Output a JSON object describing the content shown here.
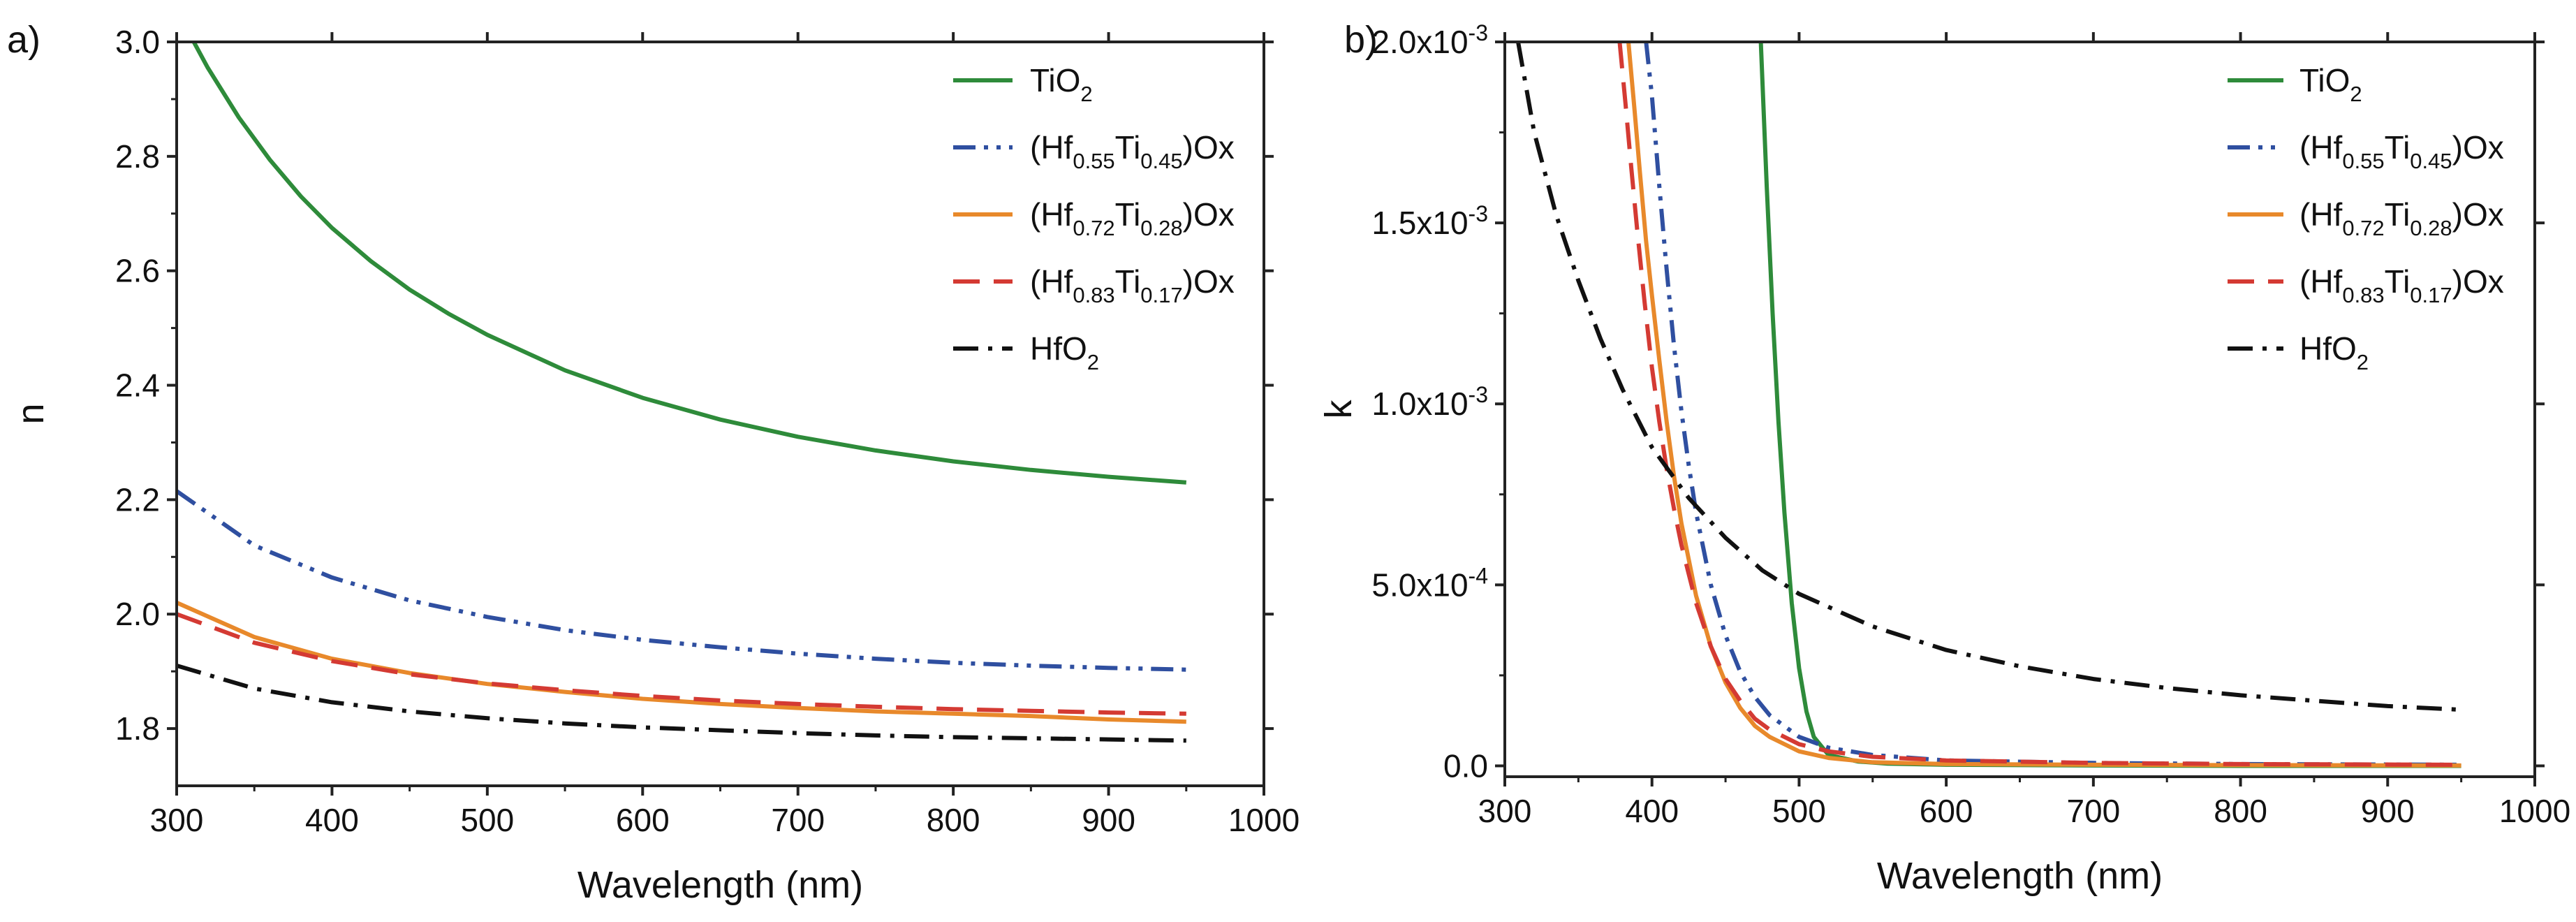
{
  "figure": {
    "panel_a_label": "a)",
    "panel_b_label": "b)"
  },
  "chart_data": [
    {
      "type": "line",
      "panel": "a)",
      "title": "",
      "xlabel": "Wavelength (nm)",
      "ylabel": "n",
      "xlim": [
        300,
        1000
      ],
      "ylim": [
        1.7,
        3.0
      ],
      "xticks": [
        300,
        400,
        500,
        600,
        700,
        800,
        900,
        1000
      ],
      "xtick_labels": [
        "300",
        "400",
        "500",
        "600",
        "700",
        "800",
        "900",
        "1000"
      ],
      "yticks": [
        1.8,
        2.0,
        2.2,
        2.4,
        2.6,
        2.8,
        3.0
      ],
      "ytick_labels": [
        "1.8",
        "2.0",
        "2.2",
        "2.4",
        "2.6",
        "2.8",
        "3.0"
      ],
      "grid": false,
      "legend_position": "top-right",
      "series": [
        {
          "name": "TiO2",
          "label_main": "TiO",
          "label_sub": "2",
          "label_tail": "",
          "color": "#2e8b3a",
          "style": "solid",
          "x": [
            311,
            320,
            340,
            360,
            380,
            400,
            425,
            450,
            475,
            500,
            550,
            600,
            650,
            700,
            750,
            800,
            850,
            900,
            950
          ],
          "y": [
            3.0,
            2.955,
            2.868,
            2.794,
            2.73,
            2.675,
            2.617,
            2.567,
            2.525,
            2.488,
            2.426,
            2.378,
            2.34,
            2.31,
            2.286,
            2.267,
            2.252,
            2.24,
            2.23
          ]
        },
        {
          "name": "(Hf0.55Ti0.45)Ox",
          "label_main": "(Hf",
          "label_sub": "0.55",
          "label_main2": "Ti",
          "label_sub2": "0.45",
          "label_tail": ")Ox",
          "color": "#2f4fa0",
          "style": "dashdotdot",
          "x": [
            300,
            350,
            400,
            450,
            500,
            550,
            600,
            650,
            700,
            750,
            800,
            850,
            900,
            950
          ],
          "y": [
            2.215,
            2.12,
            2.064,
            2.024,
            1.995,
            1.972,
            1.955,
            1.942,
            1.931,
            1.922,
            1.915,
            1.91,
            1.906,
            1.903
          ]
        },
        {
          "name": "(Hf0.72Ti0.28)Ox",
          "label_main": "(Hf",
          "label_sub": "0.72",
          "label_main2": "Ti",
          "label_sub2": "0.28",
          "label_tail": ")Ox",
          "color": "#e8892b",
          "style": "solid",
          "x": [
            300,
            350,
            400,
            450,
            500,
            550,
            600,
            650,
            700,
            750,
            800,
            850,
            900,
            950
          ],
          "y": [
            2.02,
            1.96,
            1.922,
            1.897,
            1.878,
            1.864,
            1.852,
            1.843,
            1.836,
            1.83,
            1.826,
            1.822,
            1.816,
            1.812
          ]
        },
        {
          "name": "(Hf0.83Ti0.17)Ox",
          "label_main": "(Hf",
          "label_sub": "0.83",
          "label_main2": "Ti",
          "label_sub2": "0.17",
          "label_tail": ")Ox",
          "color": "#d43a33",
          "style": "dashed",
          "x": [
            300,
            350,
            400,
            450,
            500,
            550,
            600,
            650,
            700,
            750,
            800,
            850,
            900,
            950
          ],
          "y": [
            2.0,
            1.95,
            1.918,
            1.895,
            1.879,
            1.867,
            1.857,
            1.849,
            1.843,
            1.838,
            1.834,
            1.831,
            1.828,
            1.826
          ]
        },
        {
          "name": "HfO2",
          "label_main": "HfO",
          "label_sub": "2",
          "label_tail": "",
          "color": "#111111",
          "style": "dashdot",
          "x": [
            300,
            350,
            400,
            450,
            500,
            550,
            600,
            650,
            700,
            750,
            800,
            850,
            900,
            950
          ],
          "y": [
            1.91,
            1.87,
            1.846,
            1.83,
            1.818,
            1.809,
            1.802,
            1.797,
            1.792,
            1.788,
            1.785,
            1.783,
            1.781,
            1.779
          ]
        }
      ]
    },
    {
      "type": "line",
      "panel": "b)",
      "title": "",
      "xlabel": "Wavelength (nm)",
      "ylabel": "k",
      "xlim": [
        300,
        1000
      ],
      "ylim": [
        -3e-05,
        0.002
      ],
      "xticks": [
        300,
        400,
        500,
        600,
        700,
        800,
        900,
        1000
      ],
      "xtick_labels": [
        "300",
        "400",
        "500",
        "600",
        "700",
        "800",
        "900",
        "1000"
      ],
      "yticks": [
        0.0,
        0.0005,
        0.001,
        0.0015,
        0.002
      ],
      "ytick_labels": [
        {
          "main": "0.0",
          "exp": ""
        },
        {
          "main": "5.0x10",
          "exp": "-4"
        },
        {
          "main": "1.0x10",
          "exp": "-3"
        },
        {
          "main": "1.5x10",
          "exp": "-3"
        },
        {
          "main": "2.0x10",
          "exp": "-3"
        }
      ],
      "grid": false,
      "legend_position": "top-right",
      "series": [
        {
          "name": "TiO2",
          "label_main": "TiO",
          "label_sub": "2",
          "label_tail": "",
          "color": "#2e8b3a",
          "style": "solid",
          "x": [
            474,
            478,
            482,
            486,
            490,
            495,
            500,
            505,
            510,
            520,
            540,
            560,
            600,
            700,
            800,
            950
          ],
          "y": [
            0.002,
            0.0016,
            0.00125,
            0.00095,
            0.0007,
            0.00045,
            0.00027,
            0.00015,
            8e-05,
            3e-05,
            1.2e-05,
            6e-06,
            3e-06,
            1e-06,
            0.0,
            0.0
          ]
        },
        {
          "name": "(Hf0.55Ti0.45)Ox",
          "label_main": "(Hf",
          "label_sub": "0.55",
          "label_main2": "Ti",
          "label_sub2": "0.45",
          "label_tail": ")Ox",
          "color": "#2f4fa0",
          "style": "dashdotdot",
          "x": [
            396,
            400,
            405,
            410,
            415,
            420,
            425,
            430,
            440,
            450,
            460,
            470,
            480,
            500,
            520,
            550,
            600,
            700,
            800,
            950
          ],
          "y": [
            0.002,
            0.00185,
            0.0016,
            0.00137,
            0.00116,
            0.00098,
            0.00083,
            0.0007,
            0.0005,
            0.00036,
            0.00026,
            0.00019,
            0.00014,
            8e-05,
            5e-05,
            3e-05,
            1.5e-05,
            8e-06,
            5e-06,
            3e-06
          ]
        },
        {
          "name": "(Hf0.72Ti0.28)Ox",
          "label_main": "(Hf",
          "label_sub": "0.72",
          "label_main2": "Ti",
          "label_sub2": "0.28",
          "label_tail": ")Ox",
          "color": "#e8892b",
          "style": "solid",
          "x": [
            384,
            388,
            392,
            396,
            400,
            405,
            410,
            415,
            420,
            430,
            440,
            450,
            460,
            470,
            480,
            500,
            520,
            550,
            600,
            700,
            800,
            950
          ],
          "y": [
            0.002,
            0.00182,
            0.00163,
            0.00145,
            0.0013,
            0.00112,
            0.00095,
            0.0008,
            0.00067,
            0.00047,
            0.00033,
            0.00023,
            0.00016,
            0.00011,
            8e-05,
            4e-05,
            2.2e-05,
            1e-05,
            5e-06,
            3e-06,
            2e-06,
            1e-06
          ]
        },
        {
          "name": "(Hf0.83Ti0.17)Ox",
          "label_main": "(Hf",
          "label_sub": "0.83",
          "label_main2": "Ti",
          "label_sub2": "0.17",
          "label_tail": ")Ox",
          "color": "#d43a33",
          "style": "dashed",
          "x": [
            378,
            382,
            386,
            390,
            395,
            400,
            405,
            410,
            415,
            420,
            430,
            440,
            450,
            460,
            470,
            480,
            500,
            520,
            550,
            600,
            700,
            800,
            950
          ],
          "y": [
            0.002,
            0.00183,
            0.00165,
            0.00148,
            0.00128,
            0.0011,
            0.00095,
            0.00082,
            0.00071,
            0.00061,
            0.00045,
            0.00033,
            0.00024,
            0.00018,
            0.00013,
            0.0001,
            6e-05,
            4e-05,
            2.5e-05,
            1.5e-05,
            8e-06,
            5e-06,
            3e-06
          ]
        },
        {
          "name": "HfO2",
          "label_main": "HfO",
          "label_sub": "2",
          "label_tail": "",
          "color": "#111111",
          "style": "dashdot",
          "x": [
            309,
            320,
            335,
            350,
            365,
            380,
            400,
            425,
            450,
            475,
            500,
            550,
            600,
            650,
            700,
            750,
            800,
            850,
            900,
            950
          ],
          "y": [
            0.002,
            0.00175,
            0.00152,
            0.00134,
            0.00118,
            0.00104,
            0.00088,
            0.00074,
            0.00063,
            0.00054,
            0.000475,
            0.000385,
            0.00032,
            0.000275,
            0.00024,
            0.000215,
            0.000195,
            0.00018,
            0.000165,
            0.000155
          ]
        }
      ]
    }
  ]
}
